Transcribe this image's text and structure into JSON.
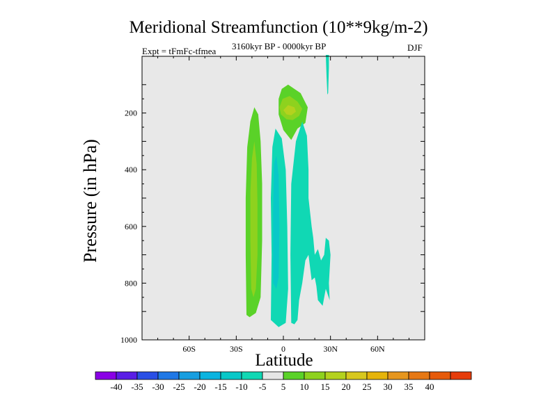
{
  "chart_data": {
    "type": "contour",
    "title": "Meridional Streamfunction (10**9kg/m-2)",
    "subtitle_left": "Expt = tFmFc-tfmea",
    "subtitle_center": "3160kyr BP - 0000kyr BP",
    "subtitle_right": "DJF",
    "xlabel": "Latitude",
    "ylabel": "Pressure (in hPa)",
    "xlim": [
      -90,
      90
    ],
    "ylim": [
      1000,
      0
    ],
    "x_ticks": [
      {
        "value": -60,
        "label": "60S"
      },
      {
        "value": -30,
        "label": "30S"
      },
      {
        "value": 0,
        "label": "0"
      },
      {
        "value": 30,
        "label": "30N"
      },
      {
        "value": 60,
        "label": "60N"
      }
    ],
    "y_ticks": [
      {
        "value": 200,
        "label": "200"
      },
      {
        "value": 400,
        "label": "400"
      },
      {
        "value": 600,
        "label": "600"
      },
      {
        "value": 800,
        "label": "800"
      },
      {
        "value": 1000,
        "label": "1000"
      }
    ],
    "contour_levels": [
      -40,
      -35,
      -30,
      -25,
      -20,
      -15,
      -10,
      -5,
      5,
      10,
      15,
      20,
      25,
      30,
      35,
      40
    ],
    "colorbar_colors": [
      "#8a00e6",
      "#5a1ee6",
      "#2a4fe6",
      "#1f78e6",
      "#179ee0",
      "#0ab4e0",
      "#08c8c8",
      "#10d8b4",
      "#e6e6e6",
      "#5ad228",
      "#8ed21e",
      "#b4d21e",
      "#d8c81e",
      "#e6b40a",
      "#e6961e",
      "#e67814",
      "#e65a0a",
      "#e63c0a"
    ],
    "background_color": "#e8e8e8",
    "regions": [
      {
        "name": "SH positive cell",
        "level": 5,
        "color": "#5ad228",
        "points": [
          [
            -23.5,
            912
          ],
          [
            -24,
            700
          ],
          [
            -24,
            500
          ],
          [
            -23,
            320
          ],
          [
            -21,
            230
          ],
          [
            -18.5,
            180
          ],
          [
            -16,
            205
          ],
          [
            -14.5,
            300
          ],
          [
            -13.5,
            450
          ],
          [
            -13.5,
            650
          ],
          [
            -14.5,
            850
          ],
          [
            -17.5,
            905
          ],
          [
            -21.5,
            920
          ]
        ]
      },
      {
        "name": "SH positive core",
        "level": 10,
        "color": "#8ed21e",
        "points": [
          [
            -20.5,
            820
          ],
          [
            -21,
            650
          ],
          [
            -21,
            480
          ],
          [
            -20,
            360
          ],
          [
            -18.5,
            300
          ],
          [
            -17,
            380
          ],
          [
            -16.5,
            520
          ],
          [
            -16.5,
            700
          ],
          [
            -17.5,
            820
          ],
          [
            -19,
            850
          ]
        ]
      },
      {
        "name": "upper positive cell",
        "level": 5,
        "color": "#5ad228",
        "points": [
          [
            -3,
            150
          ],
          [
            -1,
            115
          ],
          [
            3,
            100
          ],
          [
            11,
            130
          ],
          [
            15.5,
            180
          ],
          [
            14,
            235
          ],
          [
            9,
            255
          ],
          [
            5,
            295
          ],
          [
            0,
            260
          ],
          [
            -3,
            205
          ]
        ]
      },
      {
        "name": "upper positive core",
        "level": 10,
        "color": "#8ed21e",
        "points": [
          [
            -2.5,
            180
          ],
          [
            -0.5,
            150
          ],
          [
            4,
            140
          ],
          [
            9,
            160
          ],
          [
            12,
            185
          ],
          [
            10,
            210
          ],
          [
            6,
            225
          ],
          [
            2,
            222
          ],
          [
            -1.5,
            205
          ]
        ]
      },
      {
        "name": "upper positive max",
        "level": 15,
        "color": "#b4d21e",
        "points": [
          [
            0,
            190
          ],
          [
            3,
            172
          ],
          [
            7,
            180
          ],
          [
            8,
            195
          ],
          [
            5,
            208
          ],
          [
            2,
            205
          ]
        ]
      },
      {
        "name": "equatorial negative cell",
        "level": -5,
        "color": "#10d8b4",
        "points": [
          [
            -8,
            930
          ],
          [
            -7.5,
            700
          ],
          [
            -8,
            500
          ],
          [
            -7,
            320
          ],
          [
            -5,
            255
          ],
          [
            -1,
            290
          ],
          [
            1.5,
            400
          ],
          [
            2.5,
            600
          ],
          [
            3,
            820
          ],
          [
            1.5,
            940
          ],
          [
            -3,
            955
          ],
          [
            -6,
            940
          ]
        ]
      },
      {
        "name": "equatorial negative core",
        "level": -10,
        "color": "#08c8c8",
        "points": [
          [
            -6.5,
            800
          ],
          [
            -6.5,
            550
          ],
          [
            -6,
            380
          ],
          [
            -4.5,
            350
          ],
          [
            -3,
            420
          ],
          [
            -2.5,
            600
          ],
          [
            -3,
            780
          ],
          [
            -4.5,
            820
          ]
        ]
      },
      {
        "name": "NH negative cell",
        "level": -5,
        "color": "#10d8b4",
        "points": [
          [
            5,
            940
          ],
          [
            4.5,
            700
          ],
          [
            5,
            450
          ],
          [
            8,
            300
          ],
          [
            12,
            230
          ],
          [
            15,
            280
          ],
          [
            16,
            400
          ],
          [
            16,
            500
          ],
          [
            18,
            600
          ],
          [
            19,
            640
          ],
          [
            20,
            700
          ],
          [
            22,
            680
          ],
          [
            24,
            720
          ],
          [
            26,
            700
          ],
          [
            27,
            640
          ],
          [
            29,
            650
          ],
          [
            30,
            700
          ],
          [
            29,
            800
          ],
          [
            29.5,
            860
          ],
          [
            27,
            820
          ],
          [
            25,
            880
          ],
          [
            22,
            860
          ],
          [
            21,
            810
          ],
          [
            20,
            780
          ],
          [
            18,
            790
          ],
          [
            16,
            700
          ],
          [
            14,
            720
          ],
          [
            12,
            800
          ],
          [
            10,
            860
          ],
          [
            9,
            930
          ],
          [
            7,
            945
          ]
        ]
      },
      {
        "name": "NH upper negative sliver",
        "level": -5,
        "color": "#10d8b4",
        "points": [
          [
            27,
            -5
          ],
          [
            29,
            -5
          ],
          [
            29,
            40
          ],
          [
            28.5,
            130
          ],
          [
            28,
            135
          ],
          [
            27.5,
            70
          ]
        ]
      }
    ]
  }
}
